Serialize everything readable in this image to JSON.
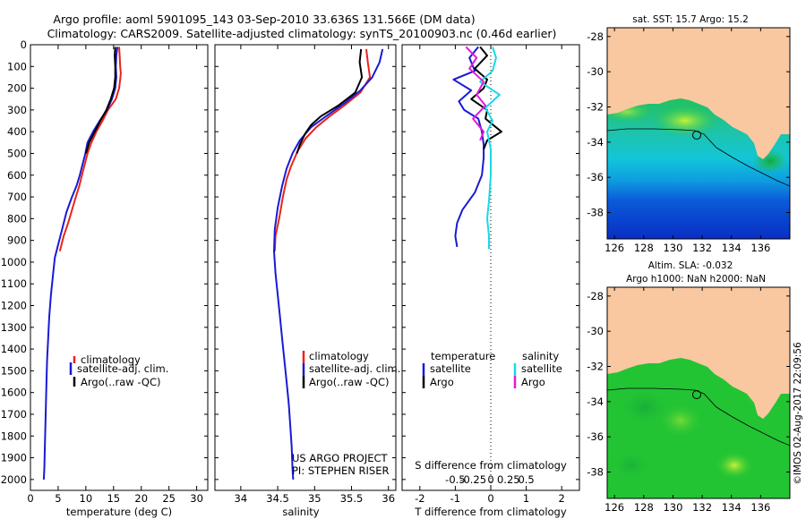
{
  "header": {
    "line1": "Argo profile: aoml 5901095_143 03-Sep-2010 33.636S 131.566E (DM data)",
    "line2": "Climatology: CARS2009. Satellite-adjusted climatology: synTS_20100903.nc (0.46d earlier)"
  },
  "colors": {
    "climatology": "#e8231c",
    "satellite": "#1a1ad4",
    "argo": "#000000",
    "sat_salinity": "#19d8e8",
    "argo_salinity": "#e01ad8",
    "land": "#f9c8a0",
    "ocean": "#22c434"
  },
  "chart_data": [
    {
      "type": "line",
      "id": "temperature",
      "xlabel": "temperature (deg C)",
      "xlim": [
        0,
        32
      ],
      "xticks": [
        0,
        5,
        10,
        15,
        20,
        25,
        30
      ],
      "ylim": [
        2050,
        0
      ],
      "yticks": [
        0,
        100,
        200,
        300,
        400,
        500,
        600,
        700,
        800,
        900,
        1000,
        1100,
        1200,
        1300,
        1400,
        1500,
        1600,
        1700,
        1800,
        1900,
        2000
      ],
      "legend": [
        "climatology",
        "satellite-adj. clim.",
        "Argo(..raw -QC)"
      ],
      "series": [
        {
          "name": "climatology",
          "color": "#e8231c",
          "points": [
            [
              16,
              10
            ],
            [
              16.1,
              50
            ],
            [
              16.2,
              100
            ],
            [
              16.3,
              130
            ],
            [
              16.2,
              160
            ],
            [
              16,
              200
            ],
            [
              15.4,
              250
            ],
            [
              14,
              300
            ],
            [
              13,
              350
            ],
            [
              11.9,
              400
            ],
            [
              11,
              450
            ],
            [
              10.3,
              500
            ],
            [
              9.8,
              550
            ],
            [
              9.3,
              600
            ],
            [
              8.8,
              650
            ],
            [
              8.2,
              700
            ],
            [
              7.5,
              760
            ],
            [
              6.8,
              820
            ],
            [
              6,
              880
            ],
            [
              5.3,
              950
            ]
          ]
        },
        {
          "name": "satellite-adj. clim.",
          "color": "#1a1ad4",
          "points": [
            [
              15.7,
              10
            ],
            [
              15.5,
              50
            ],
            [
              15.4,
              100
            ],
            [
              15.5,
              150
            ],
            [
              15.3,
              200
            ],
            [
              14.7,
              250
            ],
            [
              13.8,
              300
            ],
            [
              12.5,
              350
            ],
            [
              11.3,
              400
            ],
            [
              10.3,
              450
            ],
            [
              9.9,
              500
            ],
            [
              9.4,
              550
            ],
            [
              8.9,
              600
            ],
            [
              8.3,
              650
            ],
            [
              7.5,
              700
            ],
            [
              6.5,
              770
            ],
            [
              5.7,
              850
            ],
            [
              5,
              920
            ],
            [
              4.4,
              980
            ],
            [
              4.1,
              1050
            ],
            [
              3.7,
              1150
            ],
            [
              3.4,
              1250
            ],
            [
              3.2,
              1350
            ],
            [
              3,
              1450
            ],
            [
              2.9,
              1550
            ],
            [
              2.8,
              1650
            ],
            [
              2.7,
              1750
            ],
            [
              2.6,
              1850
            ],
            [
              2.5,
              1950
            ],
            [
              2.4,
              2000
            ]
          ]
        },
        {
          "name": "Argo(..raw -QC)",
          "color": "#000000",
          "points": [
            [
              15.3,
              10
            ],
            [
              15.2,
              50
            ],
            [
              15.3,
              100
            ],
            [
              15.3,
              150
            ],
            [
              15.1,
              200
            ],
            [
              14.5,
              250
            ],
            [
              13.7,
              300
            ],
            [
              12.6,
              350
            ],
            [
              11.6,
              400
            ],
            [
              10.6,
              450
            ],
            [
              10,
              500
            ]
          ]
        }
      ]
    },
    {
      "type": "line",
      "id": "salinity",
      "xlabel": "salinity",
      "xlim": [
        33.65,
        36.1
      ],
      "xticks": [
        34,
        34.5,
        35,
        35.5,
        36
      ],
      "ylim": [
        2050,
        0
      ],
      "legend": [
        "climatology",
        "satellite-adj. clim.",
        "Argo(..raw -QC)"
      ],
      "annotation": [
        "US ARGO PROJECT",
        "PI: STEPHEN RISER"
      ],
      "series": [
        {
          "name": "climatology",
          "color": "#e8231c",
          "points": [
            [
              35.7,
              20
            ],
            [
              35.72,
              80
            ],
            [
              35.75,
              150
            ],
            [
              35.62,
              220
            ],
            [
              35.4,
              280
            ],
            [
              35.2,
              330
            ],
            [
              35.02,
              380
            ],
            [
              34.88,
              430
            ],
            [
              34.77,
              490
            ],
            [
              34.68,
              560
            ],
            [
              34.62,
              620
            ],
            [
              34.57,
              700
            ],
            [
              34.52,
              800
            ],
            [
              34.47,
              880
            ],
            [
              34.46,
              950
            ]
          ]
        },
        {
          "name": "satellite-adj. clim.",
          "color": "#1a1ad4",
          "points": [
            [
              35.92,
              20
            ],
            [
              35.88,
              80
            ],
            [
              35.78,
              150
            ],
            [
              35.62,
              210
            ],
            [
              35.4,
              270
            ],
            [
              35.15,
              330
            ],
            [
              34.95,
              380
            ],
            [
              34.8,
              440
            ],
            [
              34.7,
              500
            ],
            [
              34.62,
              570
            ],
            [
              34.56,
              650
            ],
            [
              34.5,
              750
            ],
            [
              34.46,
              850
            ],
            [
              34.45,
              950
            ],
            [
              34.47,
              1050
            ],
            [
              34.5,
              1150
            ],
            [
              34.53,
              1250
            ],
            [
              34.56,
              1350
            ],
            [
              34.59,
              1450
            ],
            [
              34.62,
              1550
            ],
            [
              34.65,
              1650
            ],
            [
              34.67,
              1750
            ],
            [
              34.69,
              1850
            ],
            [
              34.7,
              1950
            ],
            [
              34.71,
              2000
            ]
          ]
        },
        {
          "name": "Argo(..raw -QC)",
          "color": "#000000",
          "points": [
            [
              35.63,
              20
            ],
            [
              35.61,
              80
            ],
            [
              35.64,
              150
            ],
            [
              35.55,
              220
            ],
            [
              35.32,
              280
            ],
            [
              35.08,
              330
            ],
            [
              34.95,
              370
            ],
            [
              34.87,
              410
            ],
            [
              34.8,
              460
            ],
            [
              34.76,
              500
            ]
          ]
        }
      ]
    },
    {
      "type": "line",
      "id": "difference",
      "xlabel": "T difference from climatology",
      "xlabel_top": "S difference from climatology",
      "xlim": [
        -2.5,
        2.5
      ],
      "xticks": [
        -2,
        -1,
        0,
        1,
        2
      ],
      "xticks_top": [
        "-0.5",
        "-0.25",
        "0",
        "0.25",
        "0.5"
      ],
      "ylim": [
        2050,
        0
      ],
      "legend": {
        "temperature_title": "temperature",
        "salinity_title": "salinity",
        "satellite": "satellite",
        "argo": "Argo"
      },
      "series": [
        {
          "name": "temperature satellite",
          "color": "#1a1ad4",
          "points": [
            [
              -0.35,
              10
            ],
            [
              -0.6,
              60
            ],
            [
              -0.45,
              120
            ],
            [
              -1.05,
              160
            ],
            [
              -0.55,
              210
            ],
            [
              -0.9,
              260
            ],
            [
              -0.75,
              300
            ],
            [
              -0.35,
              340
            ],
            [
              -0.25,
              400
            ],
            [
              -0.2,
              460
            ],
            [
              -0.2,
              520
            ],
            [
              -0.25,
              600
            ],
            [
              -0.45,
              680
            ],
            [
              -0.8,
              760
            ],
            [
              -0.95,
              820
            ],
            [
              -1,
              880
            ],
            [
              -0.95,
              930
            ]
          ]
        },
        {
          "name": "temperature Argo",
          "color": "#000000",
          "points": [
            [
              -0.3,
              10
            ],
            [
              -0.1,
              50
            ],
            [
              -0.45,
              110
            ],
            [
              -0.1,
              160
            ],
            [
              -0.2,
              200
            ],
            [
              -0.55,
              250
            ],
            [
              -0.1,
              300
            ],
            [
              -0.15,
              340
            ],
            [
              0.3,
              400
            ],
            [
              -0.1,
              440
            ],
            [
              -0.2,
              480
            ]
          ]
        },
        {
          "name": "salinity satellite",
          "color": "#19d8e8",
          "points": [
            [
              0.05,
              10
            ],
            [
              0.15,
              60
            ],
            [
              0.05,
              120
            ],
            [
              -0.3,
              170
            ],
            [
              0.25,
              230
            ],
            [
              -0.15,
              290
            ],
            [
              0.05,
              350
            ],
            [
              -0.1,
              400
            ],
            [
              0,
              480
            ],
            [
              0,
              600
            ],
            [
              -0.05,
              720
            ],
            [
              -0.1,
              800
            ],
            [
              -0.05,
              880
            ],
            [
              -0.05,
              940
            ]
          ]
        },
        {
          "name": "salinity Argo",
          "color": "#e01ad8",
          "points": [
            [
              -0.7,
              10
            ],
            [
              -0.4,
              60
            ],
            [
              -0.6,
              110
            ],
            [
              -0.2,
              170
            ],
            [
              -0.4,
              230
            ],
            [
              -0.15,
              280
            ],
            [
              -0.5,
              340
            ],
            [
              -0.2,
              400
            ],
            [
              -0.3,
              440
            ]
          ]
        }
      ]
    },
    {
      "type": "heatmap",
      "id": "sst-map",
      "title": "sat. SST: 15.7 Argo: 15.2",
      "xlim": [
        125.5,
        138
      ],
      "ylim": [
        -39.5,
        -27.5
      ],
      "xticks": [
        126,
        128,
        130,
        132,
        134,
        136
      ],
      "yticks": [
        -28,
        -30,
        -32,
        -34,
        -36,
        -38
      ],
      "profile": [
        131.566,
        -33.636
      ]
    },
    {
      "type": "heatmap",
      "id": "sla-map",
      "title": "Altim. SLA: -0.032",
      "subtitle": "Argo h1000: NaN h2000: NaN",
      "xlim": [
        125.5,
        138
      ],
      "ylim": [
        -39.5,
        -27.5
      ],
      "xticks": [
        126,
        128,
        130,
        132,
        134,
        136
      ],
      "yticks": [
        -28,
        -30,
        -32,
        -34,
        -36,
        -38
      ],
      "profile": [
        131.566,
        -33.636
      ]
    }
  ],
  "footer": {
    "stamp": "©IMOS 02-Aug-2017 22:09:56"
  }
}
